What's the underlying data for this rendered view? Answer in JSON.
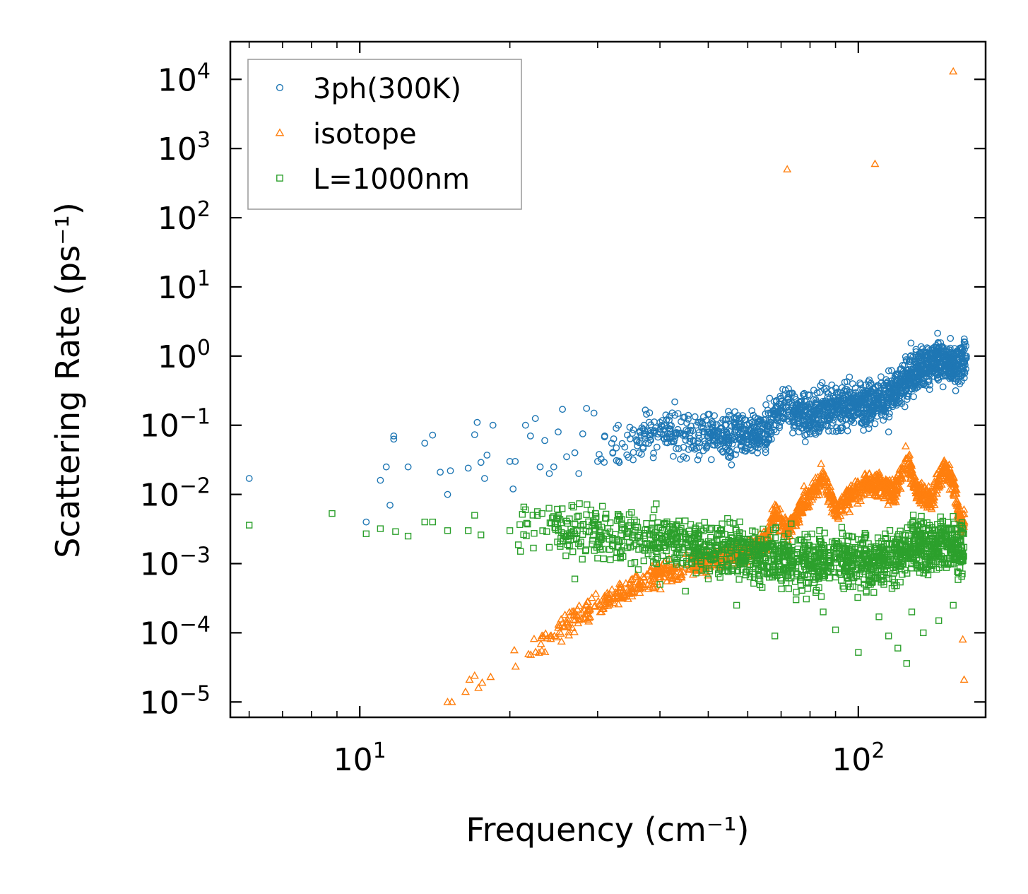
{
  "chart_data": {
    "type": "scatter",
    "title": "",
    "xlabel": "Frequency (cm⁻¹)",
    "ylabel": "Scattering Rate (ps⁻¹)",
    "xscale": "log",
    "yscale": "log",
    "xlim": [
      5.5,
      180
    ],
    "ylim": [
      6e-06,
      35000
    ],
    "x_ticks": [
      {
        "value": 10,
        "base": "10",
        "exp": "1"
      },
      {
        "value": 100,
        "base": "10",
        "exp": "2"
      }
    ],
    "y_ticks": [
      {
        "value": 1e-05,
        "base": "10",
        "exp": "−5"
      },
      {
        "value": 0.0001,
        "base": "10",
        "exp": "−4"
      },
      {
        "value": 0.001,
        "base": "10",
        "exp": "−3"
      },
      {
        "value": 0.01,
        "base": "10",
        "exp": "−2"
      },
      {
        "value": 0.1,
        "base": "10",
        "exp": "−1"
      },
      {
        "value": 1,
        "base": "10",
        "exp": "0"
      },
      {
        "value": 10,
        "base": "10",
        "exp": "1"
      },
      {
        "value": 100,
        "base": "10",
        "exp": "2"
      },
      {
        "value": 1000,
        "base": "10",
        "exp": "3"
      },
      {
        "value": 10000,
        "base": "10",
        "exp": "4"
      }
    ],
    "legend_position": "top-left",
    "series": [
      {
        "name": "3ph(300K)",
        "marker": "circle",
        "color": "#1f77b4",
        "anchors": [
          [
            6.0,
            0.017
          ],
          [
            10.3,
            0.004
          ],
          [
            11.0,
            0.016
          ],
          [
            11.3,
            0.025
          ],
          [
            11.5,
            0.007
          ],
          [
            11.7,
            0.063
          ],
          [
            11.7,
            0.07
          ],
          [
            12.5,
            0.025
          ],
          [
            13.5,
            0.055
          ],
          [
            14.0,
            0.072
          ],
          [
            14.5,
            0.021
          ],
          [
            15.0,
            0.01
          ],
          [
            15.2,
            0.022
          ],
          [
            16.5,
            0.024
          ],
          [
            17.0,
            0.073
          ],
          [
            17.2,
            0.11
          ],
          [
            17.5,
            0.029
          ],
          [
            17.8,
            0.017
          ],
          [
            18.0,
            0.037
          ],
          [
            18.5,
            0.1
          ],
          [
            20.0,
            0.03
          ],
          [
            20.3,
            0.012
          ],
          [
            20.5,
            0.03
          ],
          [
            21.5,
            0.1
          ],
          [
            22.0,
            0.07
          ],
          [
            22.5,
            0.125
          ],
          [
            23.0,
            0.025
          ],
          [
            23.5,
            0.06
          ],
          [
            24.0,
            0.02
          ],
          [
            24.5,
            0.025
          ],
          [
            25.0,
            0.08
          ],
          [
            25.5,
            0.17
          ],
          [
            26.0,
            0.035
          ],
          [
            27.0,
            0.04
          ],
          [
            27.5,
            0.02
          ],
          [
            28.0,
            0.075
          ],
          [
            28.5,
            0.175
          ],
          [
            29.5,
            0.15
          ],
          [
            30.0,
            0.03
          ],
          [
            31.0,
            0.07
          ],
          [
            33.0,
            0.1
          ],
          [
            36.0,
            0.06
          ],
          [
            40.0,
            0.11
          ],
          [
            45.0,
            0.07
          ],
          [
            50.0,
            0.1
          ],
          [
            55.0,
            0.06
          ],
          [
            60.0,
            0.07
          ],
          [
            65.0,
            0.1
          ],
          [
            70.0,
            0.2
          ],
          [
            75.0,
            0.14
          ],
          [
            80.0,
            0.12
          ],
          [
            85.0,
            0.1
          ],
          [
            90.0,
            0.2
          ],
          [
            95.0,
            0.15
          ],
          [
            100.0,
            0.25
          ],
          [
            110.0,
            0.2
          ],
          [
            115.0,
            0.08
          ],
          [
            120.0,
            0.35
          ],
          [
            125.0,
            0.5
          ],
          [
            130.0,
            0.8
          ],
          [
            140.0,
            1.1
          ],
          [
            145.0,
            1.2
          ],
          [
            150.0,
            0.6
          ],
          [
            153.0,
            1.8
          ],
          [
            158.0,
            1.2
          ],
          [
            160.0,
            0.5
          ],
          [
            163.0,
            1.6
          ]
        ],
        "band": {
          "from": 30,
          "to": 165,
          "count": 1700,
          "centers": [
            [
              30,
              0.045
            ],
            [
              40,
              0.08
            ],
            [
              55,
              0.07
            ],
            [
              65,
              0.08
            ],
            [
              70,
              0.2
            ],
            [
              80,
              0.13
            ],
            [
              90,
              0.18
            ],
            [
              100,
              0.2
            ],
            [
              110,
              0.22
            ],
            [
              120,
              0.35
            ],
            [
              130,
              0.6
            ],
            [
              145,
              0.9
            ],
            [
              155,
              0.7
            ],
            [
              162,
              0.8
            ]
          ],
          "spread": 0.22
        }
      },
      {
        "name": "isotope",
        "marker": "triangle",
        "color": "#ff7f0e",
        "anchors": [
          [
            15.0,
            1e-05
          ],
          [
            15.3,
            1e-05
          ],
          [
            16.3,
            1.4e-05
          ],
          [
            16.6,
            2.1e-05
          ],
          [
            17.0,
            2.4e-05
          ],
          [
            17.3,
            1.6e-05
          ],
          [
            17.6,
            1.9e-05
          ],
          [
            18.3,
            2.3e-05
          ],
          [
            72.0,
            500
          ],
          [
            108.0,
            600
          ],
          [
            155.0,
            13000
          ],
          [
            162.0,
            8e-05
          ],
          [
            163.0,
            2.1e-05
          ]
        ],
        "band": {
          "from": 20,
          "to": 163,
          "count": 1400,
          "centers": [
            [
              20,
              3.6e-05
            ],
            [
              25,
              0.00011
            ],
            [
              30,
              0.00025
            ],
            [
              40,
              0.0007
            ],
            [
              50,
              0.0011
            ],
            [
              60,
              0.0015
            ],
            [
              65,
              0.002
            ],
            [
              68,
              0.006
            ],
            [
              72,
              0.003
            ],
            [
              78,
              0.008
            ],
            [
              85,
              0.018
            ],
            [
              90,
              0.006
            ],
            [
              100,
              0.012
            ],
            [
              110,
              0.015
            ],
            [
              118,
              0.01
            ],
            [
              125,
              0.035
            ],
            [
              130,
              0.012
            ],
            [
              140,
              0.008
            ],
            [
              148,
              0.025
            ],
            [
              155,
              0.015
            ],
            [
              160,
              0.004
            ]
          ],
          "spread": 0.12
        }
      },
      {
        "name": "L=1000nm",
        "marker": "square",
        "color": "#2ca02c",
        "anchors": [
          [
            6.0,
            0.0036
          ],
          [
            8.8,
            0.0053
          ],
          [
            10.3,
            0.0027
          ],
          [
            11.0,
            0.0032
          ],
          [
            11.8,
            0.0029
          ],
          [
            12.5,
            0.0025
          ],
          [
            13.5,
            0.004
          ],
          [
            14.0,
            0.004
          ],
          [
            15.0,
            0.003
          ],
          [
            16.5,
            0.003
          ],
          [
            17.0,
            0.005
          ],
          [
            17.5,
            0.0026
          ],
          [
            20.0,
            0.003
          ],
          [
            21.5,
            0.006
          ],
          [
            27.0,
            0.0006
          ],
          [
            30.0,
            0.0012
          ],
          [
            35.0,
            0.001
          ],
          [
            40.0,
            0.0005
          ],
          [
            45.0,
            0.0004
          ],
          [
            50.0,
            0.0006
          ],
          [
            57.0,
            0.00025
          ],
          [
            63.0,
            0.0006
          ],
          [
            68.0,
            9e-05
          ],
          [
            75.0,
            0.0003
          ],
          [
            85.0,
            0.0002
          ],
          [
            90.0,
            0.00011
          ],
          [
            100.0,
            5.2e-05
          ],
          [
            110.0,
            0.00017
          ],
          [
            115.0,
            9e-05
          ],
          [
            120.0,
            6e-05
          ],
          [
            125.0,
            3.6e-05
          ],
          [
            128.0,
            0.0002
          ],
          [
            135.0,
            0.0001
          ],
          [
            145.0,
            0.00015
          ],
          [
            155.0,
            0.00025
          ]
        ],
        "band": {
          "from": 20,
          "to": 163,
          "count": 1600,
          "centers": [
            [
              20,
              0.003
            ],
            [
              30,
              0.0028
            ],
            [
              40,
              0.0022
            ],
            [
              50,
              0.0018
            ],
            [
              60,
              0.0015
            ],
            [
              70,
              0.0012
            ],
            [
              80,
              0.001
            ],
            [
              90,
              0.0012
            ],
            [
              100,
              0.0011
            ],
            [
              110,
              0.001
            ],
            [
              120,
              0.0013
            ],
            [
              130,
              0.0018
            ],
            [
              140,
              0.0017
            ],
            [
              150,
              0.002
            ],
            [
              160,
              0.0016
            ]
          ],
          "spread": 0.28
        }
      }
    ]
  },
  "colors": {
    "axes": "#000000",
    "legend_border": "#999999"
  }
}
